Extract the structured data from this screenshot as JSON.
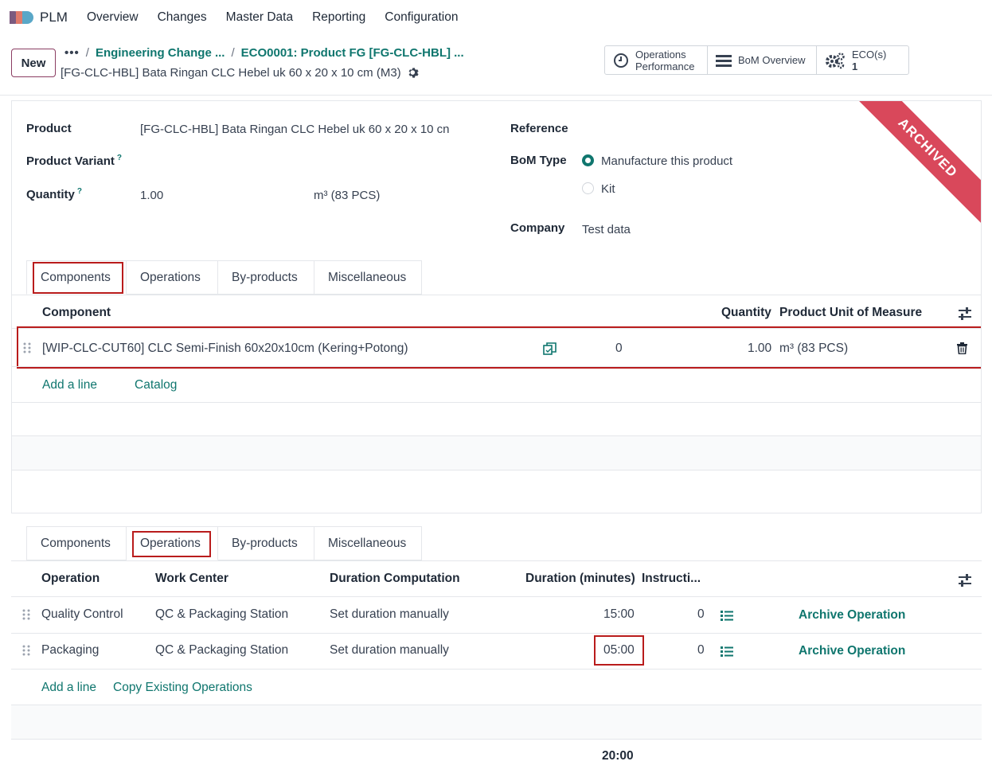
{
  "navbar": {
    "app_name": "PLM",
    "menu": [
      "Overview",
      "Changes",
      "Master Data",
      "Reporting",
      "Configuration"
    ]
  },
  "control_panel": {
    "new_label": "New",
    "breadcrumb": {
      "dots": "•••",
      "items": [
        "Engineering Change ...",
        "ECO0001: Product FG [FG-CLC-HBL] ..."
      ]
    },
    "record_title": "[FG-CLC-HBL] Bata Ringan CLC Hebel uk 60 x 20 x 10 cm (M3)",
    "smart_buttons": {
      "operations_performance": [
        "Operations",
        "Performance"
      ],
      "bom_overview": "BoM Overview",
      "ecos": {
        "label": "ECO(s)",
        "count": "1"
      }
    }
  },
  "form": {
    "ribbon": "ARCHIVED",
    "product": {
      "label": "Product",
      "value": "[FG-CLC-HBL] Bata Ringan CLC Hebel uk 60 x 20 x 10 cn"
    },
    "product_variant": {
      "label": "Product Variant",
      "help": "?"
    },
    "quantity": {
      "label": "Quantity",
      "help": "?",
      "value": "1.00",
      "uom": "m³ (83 PCS)"
    },
    "reference": {
      "label": "Reference"
    },
    "bom_type": {
      "label": "BoM Type",
      "options": [
        "Manufacture this product",
        "Kit"
      ],
      "selected": 0
    },
    "company": {
      "label": "Company",
      "value": "Test data"
    }
  },
  "tabs": [
    "Components",
    "Operations",
    "By-products",
    "Miscellaneous"
  ],
  "components": {
    "headers": {
      "component": "Component",
      "quantity": "Quantity",
      "uom": "Product Unit of Measure"
    },
    "rows": [
      {
        "component": "[WIP-CLC-CUT60] CLC Semi-Finish 60x20x10cm (Kering+Potong)",
        "availability": "0",
        "quantity": "1.00",
        "uom": "m³ (83 PCS)"
      }
    ],
    "add_line": "Add a line",
    "catalog": "Catalog"
  },
  "operations": {
    "headers": {
      "operation": "Operation",
      "work_center": "Work Center",
      "duration_computation": "Duration Computation",
      "duration": "Duration (minutes)",
      "instructions": "Instructi..."
    },
    "rows": [
      {
        "operation": "Quality Control",
        "work_center": "QC & Packaging Station",
        "computation": "Set duration manually",
        "duration": "15:00",
        "instructions": "0",
        "action": "Archive Operation"
      },
      {
        "operation": "Packaging",
        "work_center": "QC & Packaging Station",
        "computation": "Set duration manually",
        "duration": "05:00",
        "instructions": "0",
        "action": "Archive Operation"
      }
    ],
    "add_line": "Add a line",
    "copy_existing": "Copy Existing Operations",
    "total_duration": "20:00"
  },
  "colors": {
    "accent": "#0f766e",
    "brand": "#714b67",
    "ribbon": "#d9485b",
    "highlight": "#b91c1c"
  }
}
